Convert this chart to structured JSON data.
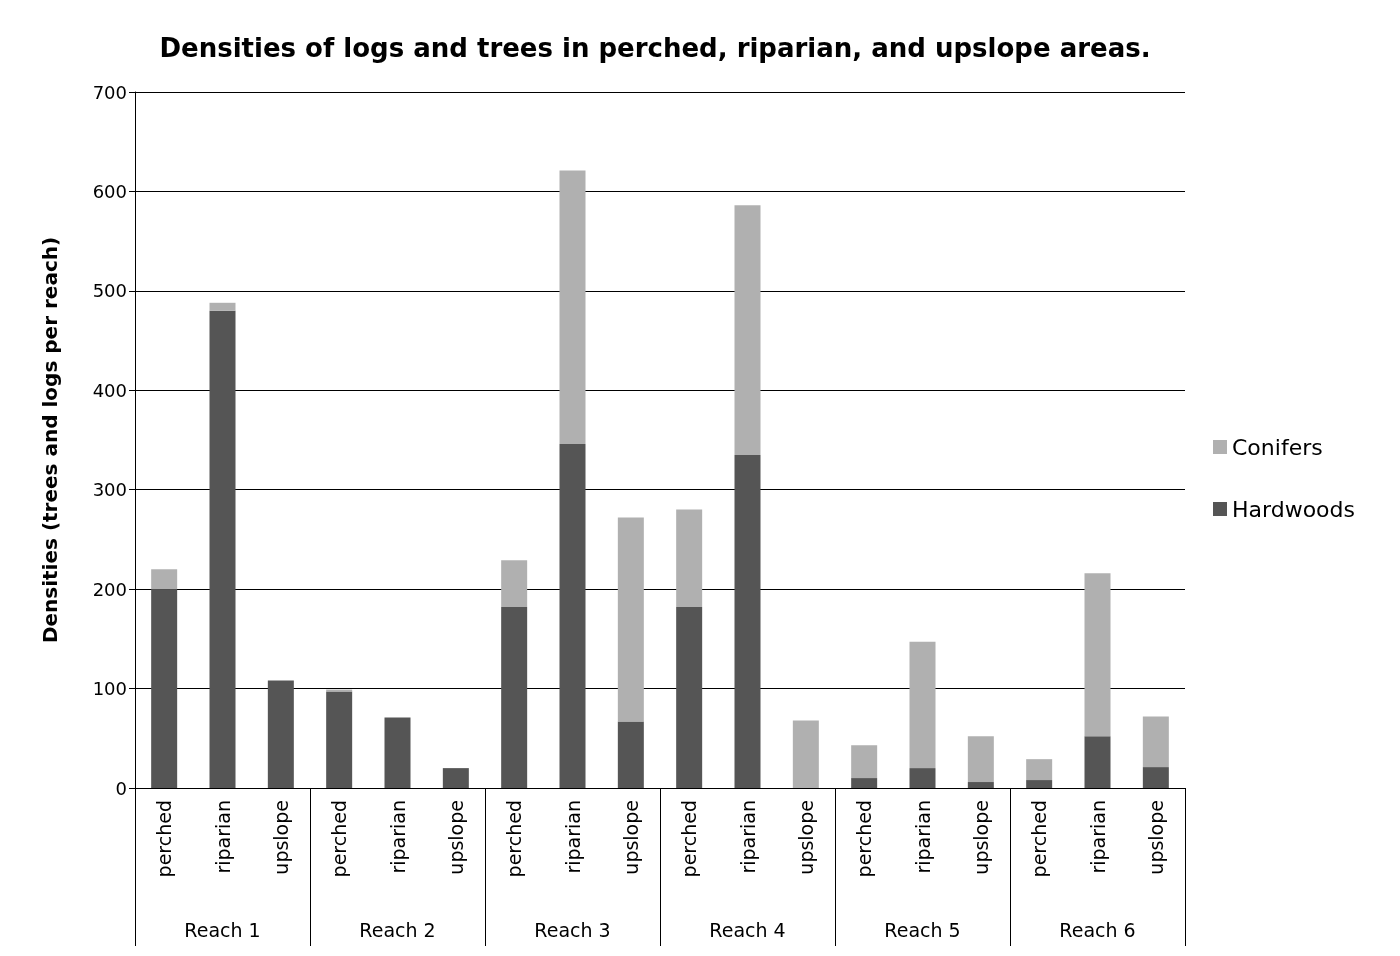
{
  "chart_data": {
    "type": "bar",
    "title": "Densities of logs and trees in perched, riparian, and upslope areas.",
    "ylabel": "Densities (trees and logs per reach)",
    "categories": [
      "perched",
      "riparian",
      "upslope",
      "perched",
      "riparian",
      "upslope",
      "perched",
      "riparian",
      "upslope",
      "perched",
      "riparian",
      "upslope",
      "perched",
      "riparian",
      "upslope",
      "perched",
      "riparian",
      "upslope"
    ],
    "annotations": [
      "Reach 1",
      "Reach 2",
      "Reach 3",
      "Reach 4",
      "Reach 5",
      "Reach 6"
    ],
    "stacked": true,
    "series": [
      {
        "name": "Hardwoods",
        "color": "#555555",
        "values": [
          200,
          480,
          108,
          97,
          71,
          20,
          182,
          346,
          67,
          182,
          335,
          0,
          10,
          20,
          6,
          8,
          52,
          21
        ]
      },
      {
        "name": "Conifers",
        "color": "#b0b0b0",
        "values": [
          20,
          8,
          0,
          2,
          0,
          0,
          47,
          275,
          205,
          98,
          251,
          68,
          33,
          127,
          46,
          21,
          164,
          51
        ]
      }
    ],
    "ylim": [
      0,
      700
    ],
    "yticks": [
      0,
      100,
      200,
      300,
      400,
      500,
      600,
      700
    ],
    "grid": "y",
    "legend": "right"
  }
}
